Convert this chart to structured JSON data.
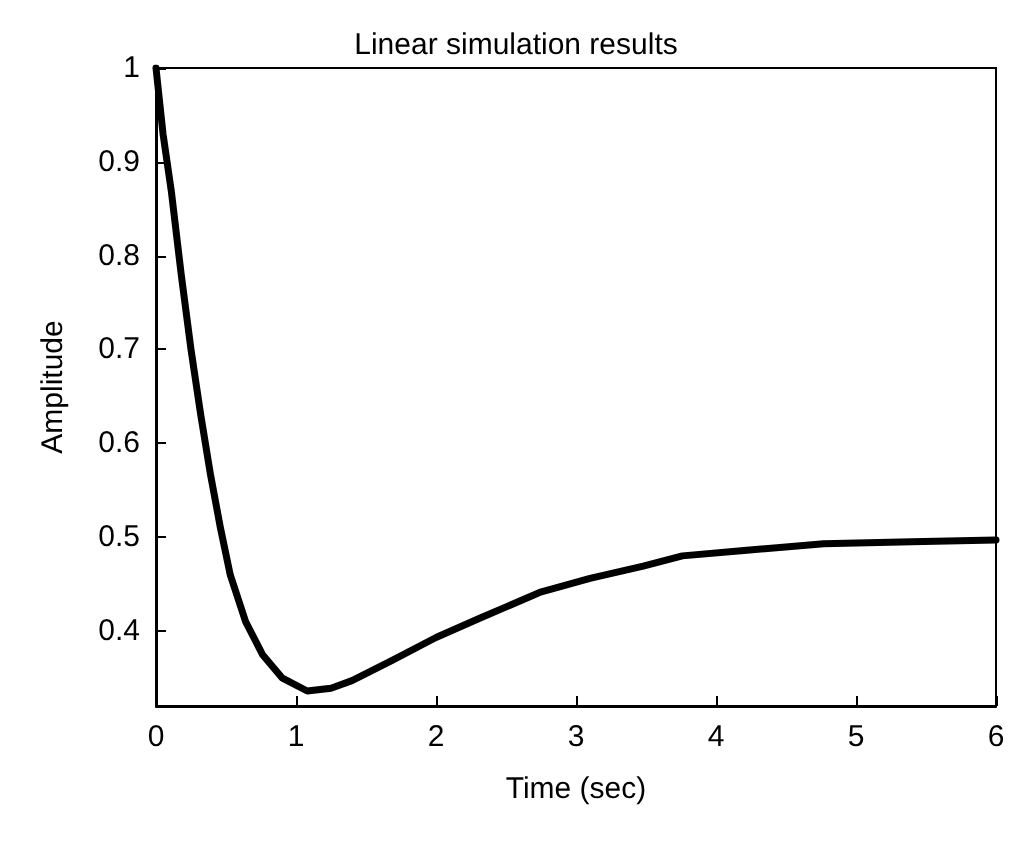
{
  "chart_data": {
    "type": "line",
    "title": "Linear simulation results",
    "xlabel": "Time (sec)",
    "ylabel": "Amplitude",
    "x": [
      0,
      0.05,
      0.11,
      0.18,
      0.25,
      0.32,
      0.39,
      0.46,
      0.53,
      0.64,
      0.76,
      0.9,
      1.08,
      1.25,
      1.4,
      1.68,
      2.0,
      2.32,
      2.74,
      3.1,
      3.48,
      3.76,
      4.22,
      4.77,
      5.4,
      6
    ],
    "series": [
      {
        "color": "#000000",
        "values": [
          1,
          0.93,
          0.868,
          0.78,
          0.7,
          0.63,
          0.566,
          0.51,
          0.46,
          0.41,
          0.375,
          0.35,
          0.336,
          0.339,
          0.347,
          0.368,
          0.393,
          0.414,
          0.441,
          0.456,
          0.469,
          0.48,
          0.486,
          0.493,
          0.495,
          0.497
        ]
      }
    ],
    "xlim": [
      0,
      6
    ],
    "xticks": [
      0,
      1,
      2,
      3,
      4,
      5,
      6
    ],
    "ylim": [
      0.32,
      1
    ],
    "yticks": [
      0.4,
      0.5,
      0.6,
      0.7,
      0.8,
      0.9,
      1
    ],
    "grid": false,
    "marker": "none",
    "line_style": "solid"
  }
}
